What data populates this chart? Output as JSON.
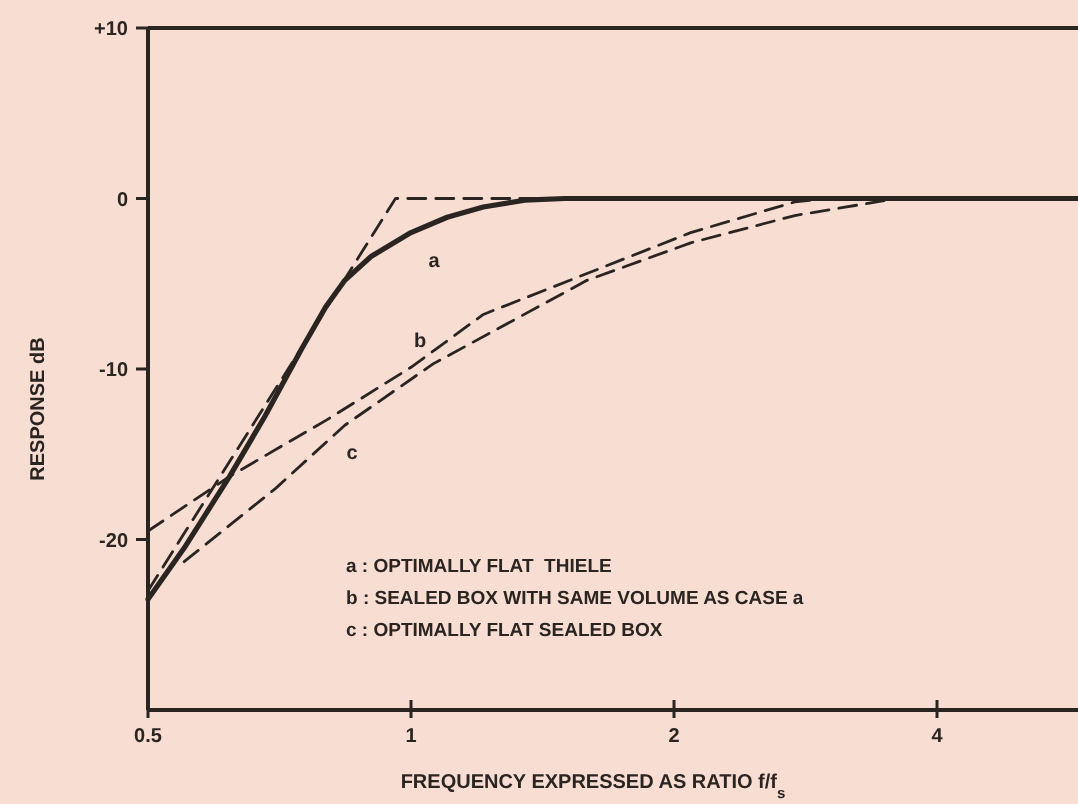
{
  "chart_data": {
    "type": "line",
    "xlabel": "FREQUENCY EXPRESSED AS RATIO f/f$_{s}$",
    "ylabel": "RESPONSE dB",
    "log": "x",
    "xlim": [
      0.5,
      5.8
    ],
    "xticks": [
      0.5,
      1,
      2,
      4
    ],
    "ylim": [
      -30,
      10
    ],
    "yticks": [
      {
        "value": 10,
        "label": "+10"
      },
      0,
      -10,
      -20
    ],
    "grid": false,
    "series": [
      {
        "color": "#2b2522",
        "line_style": "solid",
        "x": [
          0.5,
          0.55,
          0.62,
          0.68,
          0.75,
          0.8,
          0.84,
          0.9,
          1.0,
          1.1,
          1.21,
          1.35,
          1.5,
          2.0,
          3.0,
          4.0,
          5.8
        ],
        "values": [
          -23.5,
          -20.5,
          -16.3,
          -12.8,
          -8.8,
          -6.3,
          -4.8,
          -3.4,
          -2.0,
          -1.1,
          -0.5,
          -0.1,
          0,
          0,
          0,
          0,
          0
        ]
      },
      {
        "color": "#2b2522",
        "line_style": "dashed",
        "x": [
          0.5,
          0.74,
          0.96,
          5.8
        ],
        "values": [
          -23,
          -9.2,
          0,
          0
        ]
      },
      {
        "color": "#2b2522",
        "line_style": "dashed",
        "x": [
          0.5,
          0.62,
          0.8,
          1.0,
          1.21,
          1.59,
          2.09,
          2.75,
          3.0
        ],
        "values": [
          -19.5,
          -16.3,
          -13,
          -9.9,
          -6.8,
          -4.4,
          -2.0,
          -0.2,
          0
        ]
      },
      {
        "color": "#2b2522",
        "line_style": "dashed",
        "x": [
          0.55,
          0.7,
          0.84,
          1.06,
          1.59,
          2.09,
          2.75,
          3.6
        ],
        "values": [
          -21.3,
          -17,
          -13.3,
          -9.7,
          -4.8,
          -2.6,
          -1.0,
          0
        ]
      }
    ],
    "annotations": [
      "a",
      "b",
      "c",
      "a : OPTIMALLY FLAT  THIELE",
      "b : SEALED BOX WITH SAME VOLUME AS CASE a",
      "c : OPTIMALLY FLAT SEALED BOX"
    ]
  }
}
